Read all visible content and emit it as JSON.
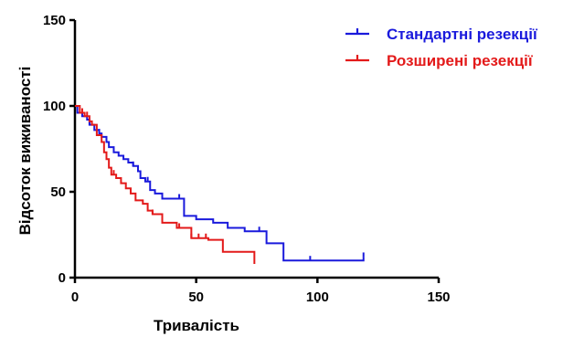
{
  "chart_data": {
    "type": "line",
    "subtype": "kaplan-meier step",
    "title": "",
    "xlabel": "Тривалість",
    "ylabel": "Відсоток виживаності",
    "xlim": [
      0,
      150
    ],
    "ylim": [
      0,
      150
    ],
    "xticks": [
      0,
      50,
      100,
      150
    ],
    "yticks": [
      0,
      50,
      100,
      150
    ],
    "grid": false,
    "legend_position": "top-right",
    "series": [
      {
        "name": "Стандартні резекції",
        "color": "#1a1adc",
        "x": [
          0,
          1,
          3,
          5,
          6,
          8,
          10,
          11,
          13,
          14,
          16,
          18,
          20,
          22,
          24,
          26,
          27,
          29,
          31,
          33,
          36,
          40,
          45,
          50,
          57,
          63,
          70,
          79,
          86,
          97,
          119
        ],
        "y": [
          100,
          96,
          94,
          92,
          89,
          86,
          84,
          82,
          79,
          76,
          73,
          71,
          69,
          67,
          65,
          62,
          58,
          56,
          51,
          49,
          46,
          46,
          36,
          34,
          32,
          29,
          27,
          20,
          10,
          10,
          12
        ],
        "censored_x": [
          6,
          10,
          24,
          30,
          43,
          76,
          97,
          119
        ]
      },
      {
        "name": "Розширені резекції",
        "color": "#e31a1a",
        "x": [
          0,
          2,
          4,
          6,
          7,
          9,
          11,
          12,
          13,
          14,
          15,
          17,
          19,
          21,
          23,
          25,
          28,
          30,
          32,
          36,
          42,
          48,
          55,
          61,
          74
        ],
        "y": [
          100,
          96,
          94,
          91,
          89,
          83,
          79,
          73,
          69,
          64,
          60,
          58,
          55,
          52,
          49,
          45,
          43,
          39,
          37,
          32,
          29,
          23,
          22,
          15,
          8
        ],
        "censored_x": [
          3,
          5,
          16,
          32,
          43,
          48,
          51,
          54
        ]
      }
    ]
  }
}
